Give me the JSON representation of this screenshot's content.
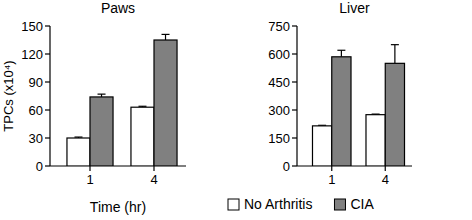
{
  "chart_data": [
    {
      "type": "bar",
      "title": "Paws",
      "ylabel": "TPCs (x10⁴)",
      "xlabel": "Time (hr)",
      "categories": [
        "1",
        "4"
      ],
      "series": [
        {
          "color": "#ffffff",
          "values": [
            30,
            63
          ],
          "errors": [
            1,
            1
          ]
        },
        {
          "color": "#808080",
          "values": [
            74,
            135
          ],
          "errors": [
            3,
            6
          ]
        }
      ],
      "ylim": [
        0,
        150
      ],
      "yticks": [
        0,
        30,
        60,
        90,
        120,
        150
      ]
    },
    {
      "type": "bar",
      "title": "Liver",
      "categories": [
        "1",
        "4"
      ],
      "series": [
        {
          "name": "No Arthritis",
          "color": "#ffffff",
          "values": [
            215,
            275
          ],
          "errors": [
            3,
            3
          ]
        },
        {
          "name": "CIA",
          "color": "#808080",
          "values": [
            585,
            550
          ],
          "errors": [
            35,
            100
          ]
        }
      ],
      "ylim": [
        0,
        750
      ],
      "yticks": [
        0,
        150,
        300,
        450,
        600,
        750
      ],
      "legend": "bottom"
    }
  ]
}
